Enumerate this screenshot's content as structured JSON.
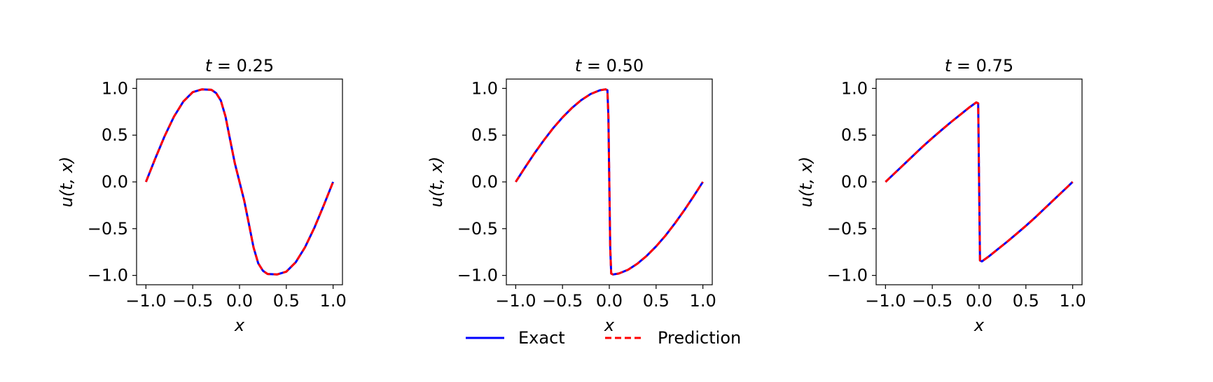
{
  "chart_data": [
    {
      "type": "line",
      "title": "t = 0.25",
      "title_var": "t",
      "title_value": "0.25",
      "xlabel": "x",
      "ylabel": "u(t, x)",
      "xlim": [
        -1.1,
        1.1
      ],
      "ylim": [
        -1.1,
        1.1
      ],
      "xticks": [
        "−1.0",
        "−0.5",
        "0.0",
        "0.5",
        "1.0"
      ],
      "yticks": [
        "1.0",
        "0.5",
        "0.0",
        "−0.5",
        "−1.0"
      ],
      "series": [
        {
          "name": "Exact",
          "color": "#0000ff",
          "style": "solid",
          "x": [
            -1.0,
            -0.9,
            -0.8,
            -0.7,
            -0.6,
            -0.5,
            -0.4,
            -0.3,
            -0.25,
            -0.2,
            -0.15,
            -0.1,
            -0.05,
            0.0,
            0.05,
            0.1,
            0.15,
            0.2,
            0.25,
            0.3,
            0.4,
            0.5,
            0.6,
            0.7,
            0.8,
            0.9,
            1.0
          ],
          "y": [
            0.0,
            0.25,
            0.49,
            0.7,
            0.86,
            0.96,
            0.99,
            0.985,
            0.95,
            0.87,
            0.7,
            0.45,
            0.2,
            0.0,
            -0.2,
            -0.45,
            -0.7,
            -0.87,
            -0.95,
            -0.985,
            -0.99,
            -0.96,
            -0.86,
            -0.7,
            -0.49,
            -0.25,
            0.0
          ]
        },
        {
          "name": "Prediction",
          "color": "#ff0000",
          "style": "dashed",
          "x": [
            -1.0,
            -0.9,
            -0.8,
            -0.7,
            -0.6,
            -0.5,
            -0.4,
            -0.3,
            -0.25,
            -0.2,
            -0.15,
            -0.1,
            -0.05,
            0.0,
            0.05,
            0.1,
            0.15,
            0.2,
            0.25,
            0.3,
            0.4,
            0.5,
            0.6,
            0.7,
            0.8,
            0.9,
            1.0
          ],
          "y": [
            0.0,
            0.25,
            0.49,
            0.7,
            0.86,
            0.96,
            0.99,
            0.985,
            0.95,
            0.87,
            0.7,
            0.45,
            0.2,
            0.0,
            -0.2,
            -0.45,
            -0.7,
            -0.87,
            -0.95,
            -0.985,
            -0.99,
            -0.96,
            -0.86,
            -0.7,
            -0.49,
            -0.25,
            0.0
          ]
        }
      ]
    },
    {
      "type": "line",
      "title": "t = 0.50",
      "title_var": "t",
      "title_value": "0.50",
      "xlabel": "x",
      "ylabel": "u(t, x)",
      "xlim": [
        -1.1,
        1.1
      ],
      "ylim": [
        -1.1,
        1.1
      ],
      "xticks": [
        "−1.0",
        "−0.5",
        "0.0",
        "0.5",
        "1.0"
      ],
      "yticks": [
        "1.0",
        "0.5",
        "0.0",
        "−0.5",
        "−1.0"
      ],
      "series": [
        {
          "name": "Exact",
          "color": "#0000ff",
          "style": "solid",
          "x": [
            -1.0,
            -0.9,
            -0.8,
            -0.7,
            -0.6,
            -0.5,
            -0.4,
            -0.3,
            -0.2,
            -0.1,
            -0.04,
            -0.02,
            -0.01,
            0.0,
            0.01,
            0.02,
            0.04,
            0.1,
            0.2,
            0.3,
            0.4,
            0.5,
            0.6,
            0.7,
            0.8,
            0.9,
            1.0
          ],
          "y": [
            0.0,
            0.155,
            0.305,
            0.445,
            0.575,
            0.69,
            0.79,
            0.875,
            0.94,
            0.98,
            0.99,
            0.98,
            0.7,
            0.0,
            -0.7,
            -0.98,
            -0.99,
            -0.98,
            -0.94,
            -0.875,
            -0.79,
            -0.69,
            -0.575,
            -0.445,
            -0.305,
            -0.155,
            0.0
          ]
        },
        {
          "name": "Prediction",
          "color": "#ff0000",
          "style": "dashed",
          "x": [
            -1.0,
            -0.9,
            -0.8,
            -0.7,
            -0.6,
            -0.5,
            -0.4,
            -0.3,
            -0.2,
            -0.1,
            -0.04,
            -0.02,
            -0.01,
            0.0,
            0.01,
            0.02,
            0.04,
            0.1,
            0.2,
            0.3,
            0.4,
            0.5,
            0.6,
            0.7,
            0.8,
            0.9,
            1.0
          ],
          "y": [
            0.0,
            0.155,
            0.305,
            0.445,
            0.575,
            0.69,
            0.79,
            0.875,
            0.94,
            0.98,
            0.99,
            0.98,
            0.7,
            0.0,
            -0.7,
            -0.98,
            -0.99,
            -0.98,
            -0.94,
            -0.875,
            -0.79,
            -0.69,
            -0.575,
            -0.445,
            -0.305,
            -0.155,
            0.0
          ]
        }
      ]
    },
    {
      "type": "line",
      "title": "t = 0.75",
      "title_var": "t",
      "title_value": "0.75",
      "xlabel": "x",
      "ylabel": "u(t, x)",
      "xlim": [
        -1.1,
        1.1
      ],
      "ylim": [
        -1.1,
        1.1
      ],
      "xticks": [
        "−1.0",
        "−0.5",
        "0.0",
        "0.5",
        "1.0"
      ],
      "yticks": [
        "1.0",
        "0.5",
        "0.0",
        "−0.5",
        "−1.0"
      ],
      "series": [
        {
          "name": "Exact",
          "color": "#0000ff",
          "style": "solid",
          "x": [
            -1.0,
            -0.9,
            -0.8,
            -0.7,
            -0.6,
            -0.5,
            -0.4,
            -0.3,
            -0.2,
            -0.1,
            -0.03,
            -0.01,
            0.0,
            0.01,
            0.03,
            0.1,
            0.2,
            0.3,
            0.4,
            0.5,
            0.6,
            0.7,
            0.8,
            0.9,
            1.0
          ],
          "y": [
            0.0,
            0.095,
            0.19,
            0.285,
            0.38,
            0.47,
            0.555,
            0.64,
            0.72,
            0.8,
            0.85,
            0.84,
            0.0,
            -0.84,
            -0.85,
            -0.8,
            -0.72,
            -0.64,
            -0.555,
            -0.47,
            -0.38,
            -0.285,
            -0.19,
            -0.095,
            0.0
          ]
        },
        {
          "name": "Prediction",
          "color": "#ff0000",
          "style": "dashed",
          "x": [
            -1.0,
            -0.9,
            -0.8,
            -0.7,
            -0.6,
            -0.5,
            -0.4,
            -0.3,
            -0.2,
            -0.1,
            -0.03,
            -0.01,
            0.0,
            0.01,
            0.03,
            0.1,
            0.2,
            0.3,
            0.4,
            0.5,
            0.6,
            0.7,
            0.8,
            0.9,
            1.0
          ],
          "y": [
            0.0,
            0.095,
            0.19,
            0.285,
            0.38,
            0.47,
            0.555,
            0.64,
            0.72,
            0.8,
            0.85,
            0.84,
            0.0,
            -0.84,
            -0.85,
            -0.8,
            -0.72,
            -0.64,
            -0.555,
            -0.47,
            -0.38,
            -0.285,
            -0.19,
            -0.095,
            0.0
          ]
        }
      ]
    }
  ],
  "legend": {
    "placement": "bottom-center",
    "entries": [
      {
        "label": "Exact",
        "color": "#0000ff",
        "style": "solid"
      },
      {
        "label": "Prediction",
        "color": "#ff0000",
        "style": "dashed"
      }
    ]
  }
}
